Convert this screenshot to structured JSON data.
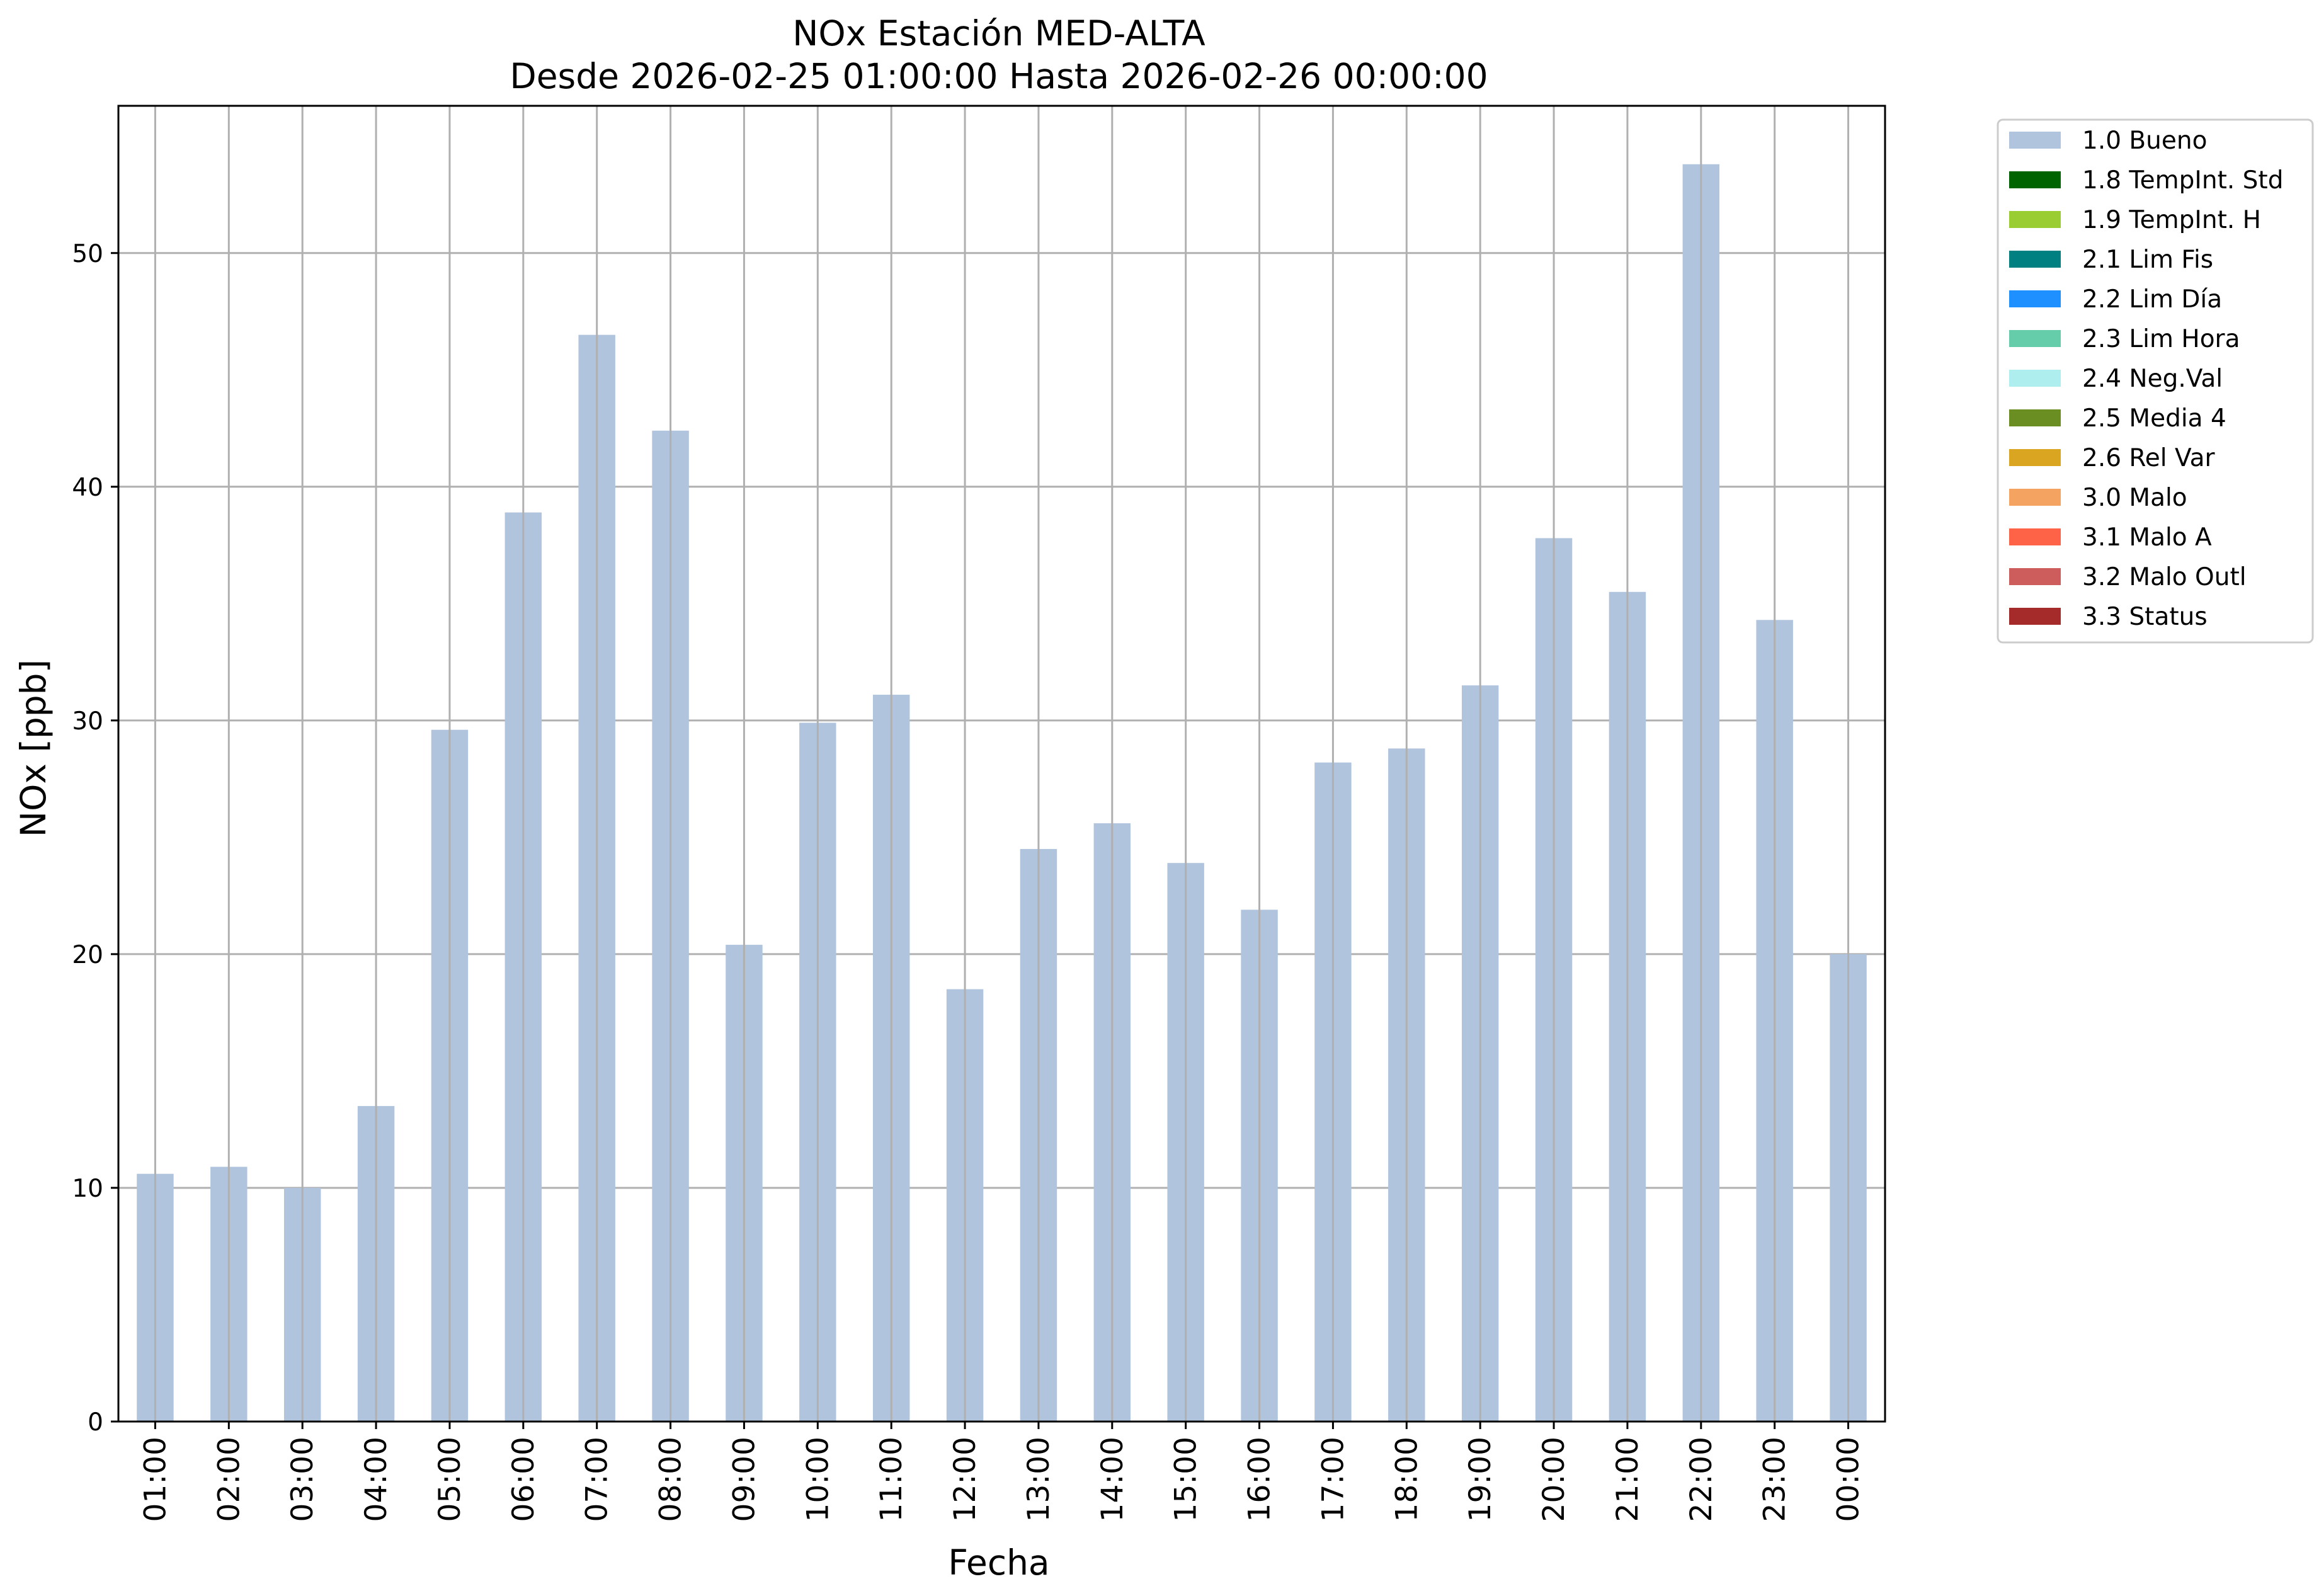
{
  "chart_data": {
    "type": "bar",
    "title": "NOx Estación MED-ALTA",
    "subtitle": "Desde 2026-02-25 01:00:00 Hasta 2026-02-26 00:00:00",
    "xlabel": "Fecha",
    "ylabel": "NOx [ppb]",
    "ylim": [
      0,
      56.3
    ],
    "yticks": [
      0,
      10,
      20,
      30,
      40,
      50
    ],
    "grid": true,
    "legend_position": "outside-top-right",
    "categories": [
      "01:00",
      "02:00",
      "03:00",
      "04:00",
      "05:00",
      "06:00",
      "07:00",
      "08:00",
      "09:00",
      "10:00",
      "11:00",
      "12:00",
      "13:00",
      "14:00",
      "15:00",
      "16:00",
      "17:00",
      "18:00",
      "19:00",
      "20:00",
      "21:00",
      "22:00",
      "23:00",
      "00:00"
    ],
    "series": [
      {
        "name": "1.0 Bueno",
        "color": "#b0c4de",
        "values": [
          10.6,
          10.9,
          10.0,
          13.5,
          29.6,
          38.9,
          46.5,
          42.4,
          20.4,
          29.9,
          31.1,
          18.5,
          24.5,
          25.6,
          23.9,
          21.9,
          28.2,
          28.8,
          31.5,
          37.8,
          35.5,
          53.8,
          34.3,
          20.0
        ]
      }
    ],
    "legend": [
      {
        "label": "1.0 Bueno",
        "color": "#b0c4de"
      },
      {
        "label": "1.8 TempInt. Std",
        "color": "#006400"
      },
      {
        "label": "1.9 TempInt. H",
        "color": "#9acd32"
      },
      {
        "label": "2.1 Lim Fis",
        "color": "#008080"
      },
      {
        "label": "2.2 Lim Día",
        "color": "#1e90ff"
      },
      {
        "label": "2.3 Lim Hora",
        "color": "#66cdaa"
      },
      {
        "label": "2.4 Neg.Val",
        "color": "#afeeee"
      },
      {
        "label": "2.5 Media 4",
        "color": "#6b8e23"
      },
      {
        "label": "2.6 Rel Var",
        "color": "#daa520"
      },
      {
        "label": "3.0 Malo",
        "color": "#f4a460"
      },
      {
        "label": "3.1 Malo A",
        "color": "#ff6347"
      },
      {
        "label": "3.2 Malo Outl",
        "color": "#cd5c5c"
      },
      {
        "label": "3.3 Status",
        "color": "#a52a2a"
      }
    ]
  }
}
